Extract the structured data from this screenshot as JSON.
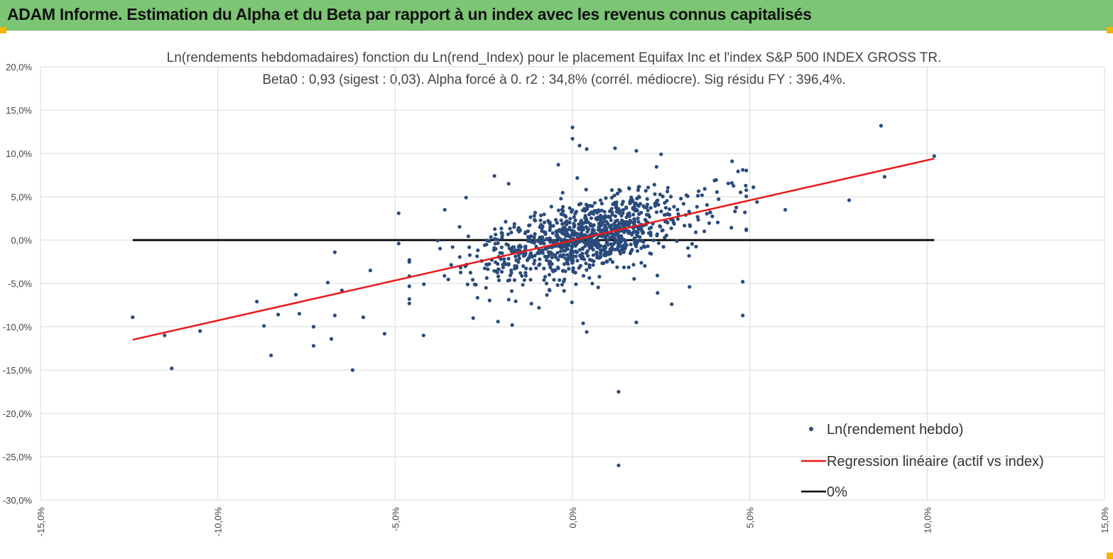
{
  "banner": {
    "title": "ADAM Informe. Estimation du Alpha et du Beta par rapport à un index avec les revenus connus capitalisés",
    "color": "#7cc574"
  },
  "chart_data": {
    "type": "scatter",
    "title": "Ln(rendements hebdomadaires) fonction du Ln(rend_Index) pour le placement Equifax Inc et l'index S&P 500 INDEX GROSS TR.",
    "subtitle": "Beta0 : 0,93  (sigest : 0,03). Alpha forcé à 0. r2 : 34,8% (corrél. médiocre). Sig résidu FY : 396,4%.",
    "xlabel": "",
    "ylabel": "",
    "xlim": [
      -15,
      15
    ],
    "ylim": [
      -30,
      20
    ],
    "grid": true,
    "legend_position": "bottom-right",
    "x_ticks": [
      -15,
      -10,
      -5,
      0,
      5,
      10,
      15
    ],
    "x_tick_labels": [
      "-15,0%",
      "-10,0%",
      "-5,0%",
      "0,0%",
      "5,0%",
      "10,0%",
      "15,0%"
    ],
    "y_ticks": [
      20,
      15,
      10,
      5,
      0,
      -5,
      -10,
      -15,
      -20,
      -25,
      -30
    ],
    "y_tick_labels": [
      "20,0%",
      "15,0%",
      "10,0%",
      "5,0%",
      "0,0%",
      "-5,0%",
      "-10,0%",
      "-15,0%",
      "-20,0%",
      "-25,0%",
      "-30,0%"
    ],
    "series": [
      {
        "name": "Ln(rendement hebdo)",
        "kind": "scatter",
        "color": "#2a4b7c",
        "generated_points": 1050,
        "points": [
          [
            -12.4,
            -8.9
          ],
          [
            -11.5,
            -11.0
          ],
          [
            -11.3,
            -14.8
          ],
          [
            -10.5,
            -10.5
          ],
          [
            -8.9,
            -7.1
          ],
          [
            -8.7,
            -9.9
          ],
          [
            -8.5,
            -13.3
          ],
          [
            -8.3,
            -8.6
          ],
          [
            -7.8,
            -6.3
          ],
          [
            -7.7,
            -8.5
          ],
          [
            -7.3,
            -10.0
          ],
          [
            -7.3,
            -12.2
          ],
          [
            -6.9,
            -4.9
          ],
          [
            -6.8,
            -11.4
          ],
          [
            -6.7,
            -8.7
          ],
          [
            -6.7,
            -1.4
          ],
          [
            -6.5,
            -5.8
          ],
          [
            -6.2,
            -15.0
          ],
          [
            -5.9,
            -8.9
          ],
          [
            -5.7,
            -3.5
          ],
          [
            -5.3,
            -10.8
          ],
          [
            -4.9,
            3.1
          ],
          [
            -4.2,
            -11.0
          ],
          [
            -3.6,
            3.5
          ],
          [
            -3.0,
            4.9
          ],
          [
            -2.2,
            7.4
          ],
          [
            -1.8,
            6.5
          ],
          [
            -1.7,
            -9.8
          ],
          [
            -2.8,
            -9.0
          ],
          [
            -2.1,
            -9.4
          ],
          [
            -0.4,
            8.7
          ],
          [
            0.0,
            13.0
          ],
          [
            0.0,
            11.7
          ],
          [
            0.2,
            10.9
          ],
          [
            0.4,
            10.5
          ],
          [
            0.4,
            -10.6
          ],
          [
            0.3,
            -9.6
          ],
          [
            1.2,
            10.6
          ],
          [
            1.8,
            10.3
          ],
          [
            2.5,
            9.9
          ],
          [
            4.5,
            9.1
          ],
          [
            4.8,
            8.1
          ],
          [
            4.8,
            -4.8
          ],
          [
            4.8,
            -8.7
          ],
          [
            5.1,
            6.1
          ],
          [
            5.2,
            4.4
          ],
          [
            6.0,
            3.5
          ],
          [
            7.8,
            4.6
          ],
          [
            8.7,
            13.2
          ],
          [
            8.8,
            7.3
          ],
          [
            10.2,
            9.7
          ],
          [
            1.8,
            -9.5
          ],
          [
            1.3,
            -17.5
          ],
          [
            1.3,
            -26.0
          ],
          [
            2.4,
            -6.1
          ],
          [
            2.8,
            -7.4
          ],
          [
            3.3,
            -5.4
          ],
          [
            -4.9,
            -0.4
          ]
        ]
      },
      {
        "name": "Regression linéaire (actif vs index)",
        "kind": "line",
        "color": "#e8191a",
        "x": [
          -12.4,
          10.2
        ],
        "y": [
          -11.5,
          9.4
        ]
      },
      {
        "name": "0%",
        "kind": "line",
        "color": "#000000",
        "x": [
          -12.4,
          10.2
        ],
        "y": [
          0,
          0
        ]
      }
    ]
  }
}
